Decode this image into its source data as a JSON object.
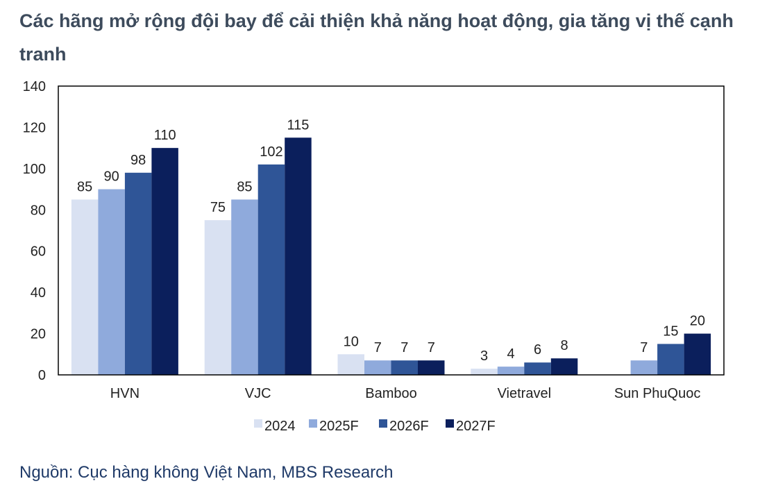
{
  "title": "Các hãng mở rộng đội bay để cải thiện khả năng hoạt động, gia tăng vị thế cạnh tranh",
  "source": "Nguồn: Cục hàng không Việt Nam, MBS Research",
  "chart_data": {
    "type": "bar",
    "categories": [
      "HVN",
      "VJC",
      "Bamboo",
      "Vietravel",
      "Sun PhuQuoc"
    ],
    "series": [
      {
        "name": "2024",
        "color": "#d9e1f2",
        "values": [
          85,
          75,
          10,
          3,
          null
        ]
      },
      {
        "name": "2025F",
        "color": "#8faadc",
        "values": [
          90,
          85,
          7,
          4,
          7
        ]
      },
      {
        "name": "2026F",
        "color": "#2f5597",
        "values": [
          98,
          102,
          7,
          6,
          15
        ]
      },
      {
        "name": "2027F",
        "color": "#0b1f5c",
        "values": [
          110,
          115,
          7,
          8,
          20
        ]
      }
    ],
    "yticks": [
      0,
      20,
      40,
      60,
      80,
      100,
      120,
      140
    ],
    "ylim": [
      0,
      140
    ],
    "legend": "bottom",
    "grid": false
  }
}
